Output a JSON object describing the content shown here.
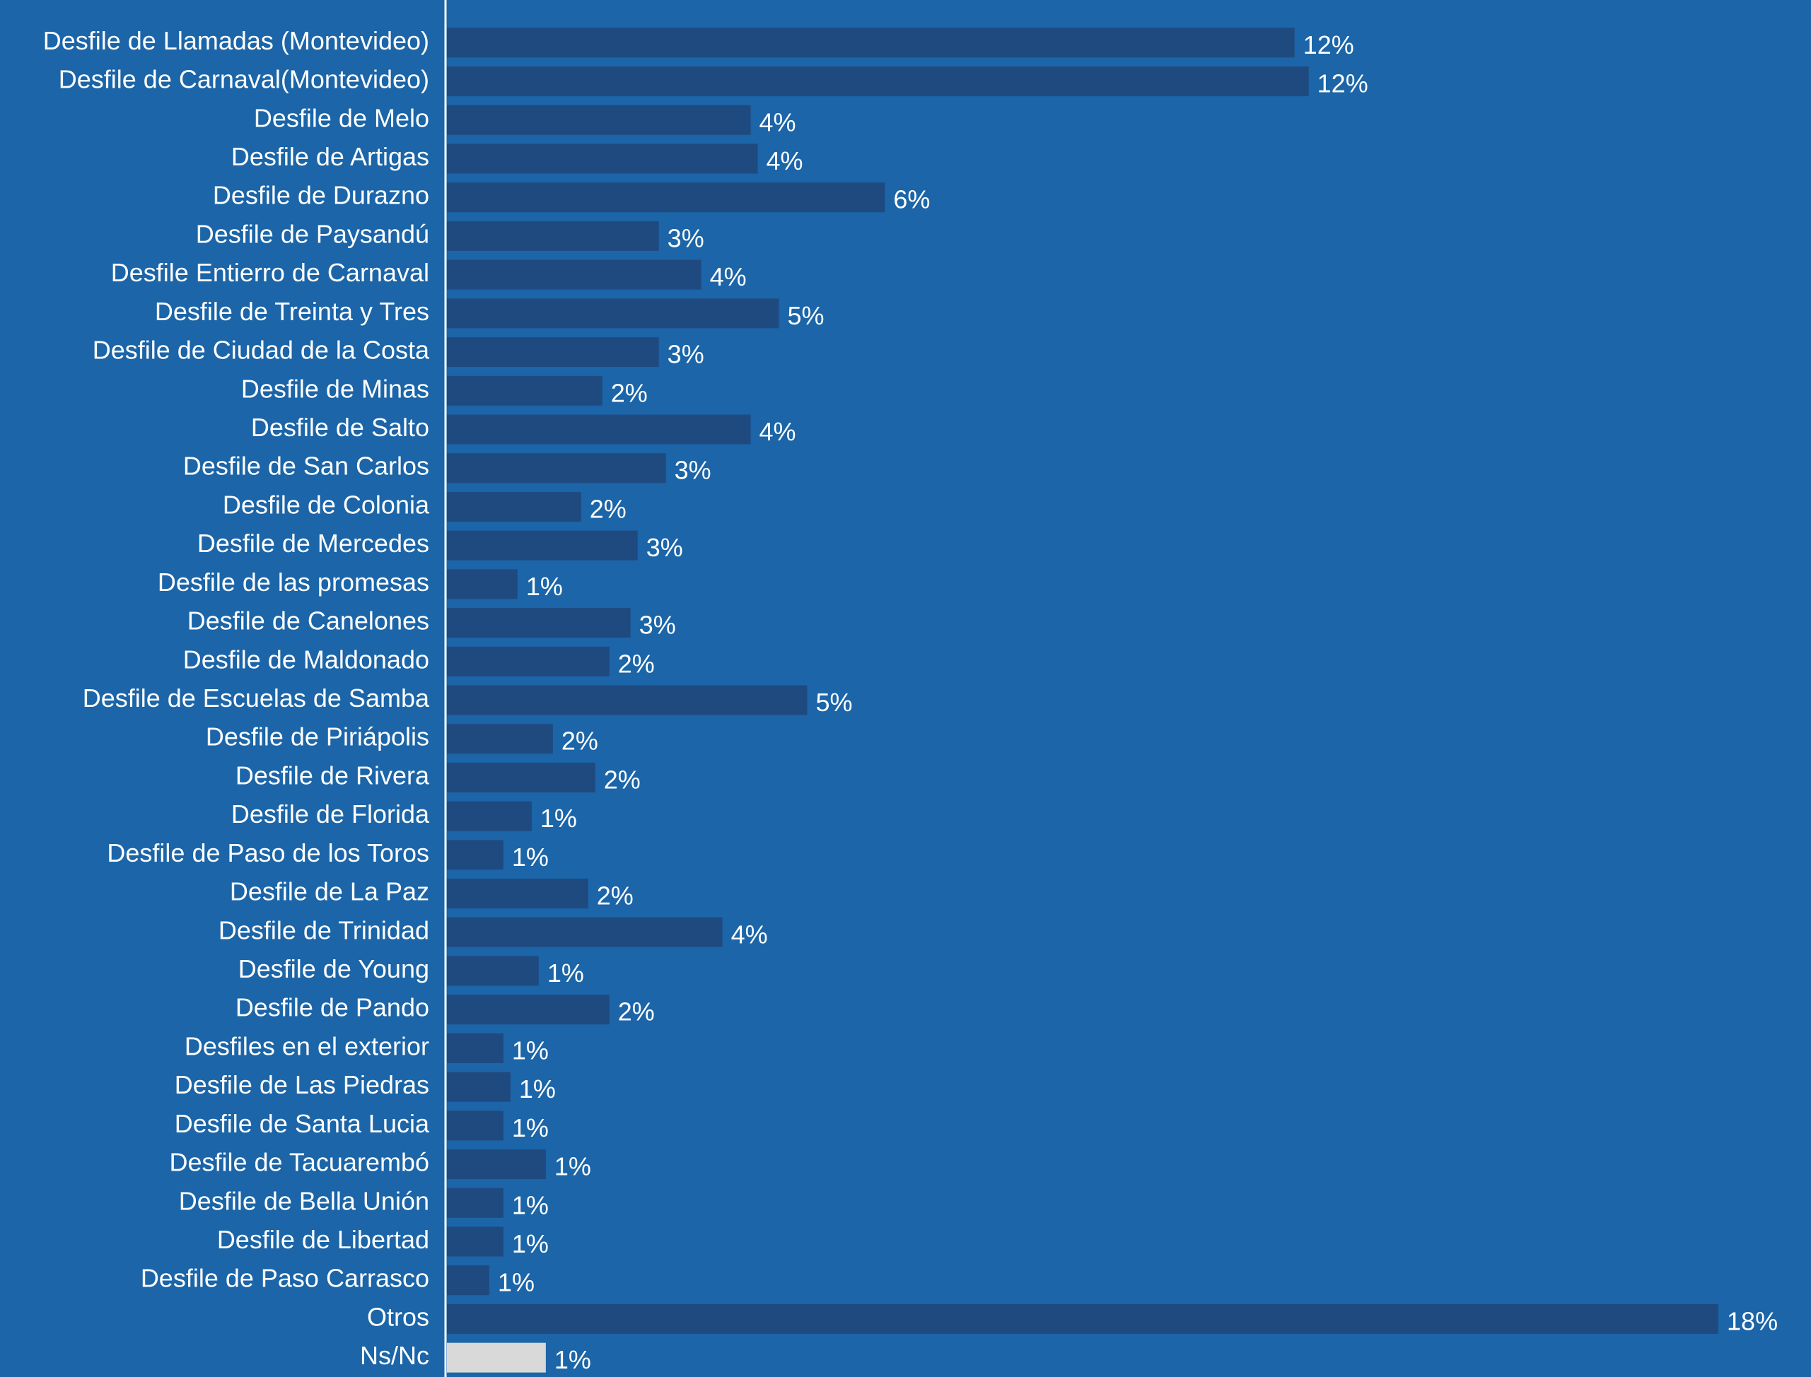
{
  "chart_data": {
    "type": "barh",
    "categories": [
      "Desfile de Llamadas (Montevideo)",
      "Desfile de Carnaval(Montevideo)",
      "Desfile de Melo",
      "Desfile de Artigas",
      "Desfile de Durazno",
      "Desfile de Paysandú",
      "Desfile Entierro de Carnaval",
      "Desfile de Treinta y Tres",
      "Desfile de Ciudad de la Costa",
      "Desfile de Minas",
      "Desfile de Salto",
      "Desfile de San Carlos",
      "Desfile de Colonia",
      "Desfile de Mercedes",
      "Desfile de las promesas",
      "Desfile de Canelones",
      "Desfile de Maldonado",
      "Desfile de Escuelas de Samba",
      "Desfile de Piriápolis",
      "Desfile de Rivera",
      "Desfile de Florida",
      "Desfile de Paso de los Toros",
      "Desfile de La Paz",
      "Desfile de Trinidad",
      "Desfile de Young",
      "Desfile de Pando",
      "Desfiles en el exterior",
      "Desfile de Las Piedras",
      "Desfile de Santa Lucia",
      "Desfile de Tacuarembó",
      "Desfile de Bella Unión",
      "Desfile de Libertad",
      "Desfile de Paso Carrasco",
      "Otros",
      "Ns/Nc"
    ],
    "values": [
      12.0,
      12.2,
      4.3,
      4.4,
      6.2,
      3.0,
      3.6,
      4.7,
      3.0,
      2.2,
      4.3,
      3.1,
      1.9,
      2.7,
      1.0,
      2.6,
      2.3,
      5.1,
      1.5,
      2.1,
      1.2,
      0.8,
      2.0,
      3.9,
      1.3,
      2.3,
      0.8,
      0.9,
      0.8,
      1.4,
      0.8,
      0.8,
      0.6,
      18,
      1.4
    ],
    "value_labels": [
      "12%",
      "12%",
      "4%",
      "4%",
      "6%",
      "3%",
      "4%",
      "5%",
      "3%",
      "2%",
      "4%",
      "3%",
      "2%",
      "3%",
      "1%",
      "3%",
      "2%",
      "5%",
      "2%",
      "2%",
      "1%",
      "1%",
      "2%",
      "4%",
      "1%",
      "2%",
      "1%",
      "1%",
      "1%",
      "1%",
      "1%",
      "1%",
      "1%",
      "18%",
      "1%"
    ],
    "colors": [
      "#1f4a80",
      "#1f4a80",
      "#1f4a80",
      "#1f4a80",
      "#1f4a80",
      "#1f4a80",
      "#1f4a80",
      "#1f4a80",
      "#1f4a80",
      "#1f4a80",
      "#1f4a80",
      "#1f4a80",
      "#1f4a80",
      "#1f4a80",
      "#1f4a80",
      "#1f4a80",
      "#1f4a80",
      "#1f4a80",
      "#1f4a80",
      "#1f4a80",
      "#1f4a80",
      "#1f4a80",
      "#1f4a80",
      "#1f4a80",
      "#1f4a80",
      "#1f4a80",
      "#1f4a80",
      "#1f4a80",
      "#1f4a80",
      "#1f4a80",
      "#1f4a80",
      "#1f4a80",
      "#1f4a80",
      "#1f4a80",
      "#d9d9d9"
    ],
    "xlim": [
      0,
      18.3
    ]
  }
}
